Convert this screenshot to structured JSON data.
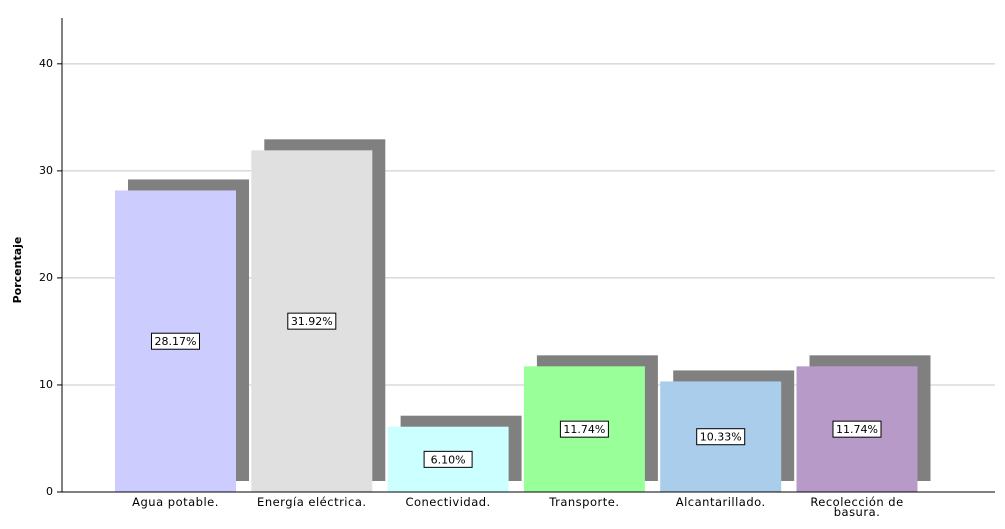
{
  "chart_data": {
    "type": "bar",
    "y_label": "Porcentaje",
    "categories": [
      "Agua potable.",
      "Energía eléctrica.",
      "Conectividad.",
      "Transporte.",
      "Alcantarillado.",
      "Recolección de basura."
    ],
    "values": [
      28.17,
      31.92,
      6.1,
      11.74,
      10.33,
      11.74
    ],
    "value_labels": [
      "28.17%",
      "31.92%",
      "6.10%",
      "11.74%",
      "10.33%",
      "11.74%"
    ],
    "colors": [
      "#ccccff",
      "#e0e0e0",
      "#ccffff",
      "#99ff99",
      "#a9cdeb",
      "#b89ac8"
    ],
    "shadow_color": "#808080",
    "ylim": [
      0,
      44
    ],
    "yticks": [
      0,
      10,
      20,
      30,
      40
    ],
    "grid": true
  }
}
